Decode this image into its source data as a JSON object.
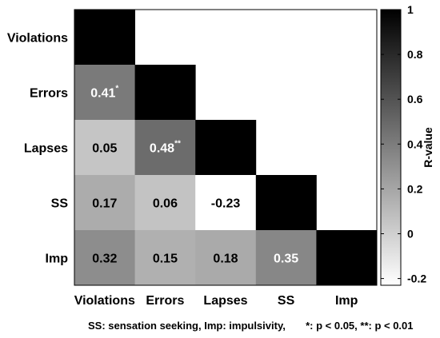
{
  "chart_data": {
    "type": "heatmap",
    "labels": [
      "Violations",
      "Errors",
      "Lapses",
      "SS",
      "Imp"
    ],
    "matrix": [
      [
        1,
        null,
        null,
        null,
        null
      ],
      [
        0.41,
        1,
        null,
        null,
        null
      ],
      [
        0.05,
        0.48,
        1,
        null,
        null
      ],
      [
        0.17,
        0.06,
        -0.23,
        1,
        null
      ],
      [
        0.32,
        0.15,
        0.18,
        0.35,
        1
      ]
    ],
    "cell_labels": [
      {
        "row": 1,
        "col": 0,
        "text": "0.41",
        "sig": "*"
      },
      {
        "row": 2,
        "col": 0,
        "text": "0.05",
        "sig": ""
      },
      {
        "row": 2,
        "col": 1,
        "text": "0.48",
        "sig": "**"
      },
      {
        "row": 3,
        "col": 0,
        "text": "0.17",
        "sig": ""
      },
      {
        "row": 3,
        "col": 1,
        "text": "0.06",
        "sig": ""
      },
      {
        "row": 3,
        "col": 2,
        "text": "-0.23",
        "sig": ""
      },
      {
        "row": 4,
        "col": 0,
        "text": "0.32",
        "sig": ""
      },
      {
        "row": 4,
        "col": 1,
        "text": "0.15",
        "sig": ""
      },
      {
        "row": 4,
        "col": 2,
        "text": "0.18",
        "sig": ""
      },
      {
        "row": 4,
        "col": 3,
        "text": "0.35",
        "sig": ""
      }
    ],
    "colorbar": {
      "label": "R-value",
      "min": -0.23,
      "max": 1,
      "ticks": [
        1,
        0.8,
        0.6,
        0.4,
        0.2,
        0,
        -0.2
      ],
      "tick_labels": [
        "1",
        "0.8",
        "0.6",
        "0.4",
        "0.2",
        "0",
        "-0.2"
      ],
      "colormap": "gray-reversed"
    },
    "footnote": "SS: sensation seeking, Imp: impulsivity,       *: p < 0.05, **: p < 0.01"
  }
}
